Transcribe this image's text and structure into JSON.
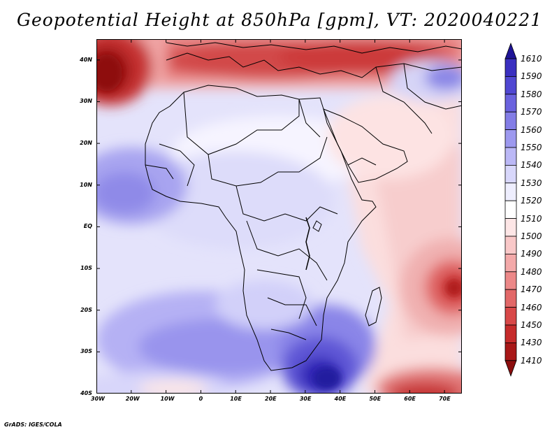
{
  "title": "Geopotential Height at 850hPa [gpm], VT: 2020040221",
  "credit": "GrADS: IGES/COLA",
  "map": {
    "lon_range": [
      -30,
      75
    ],
    "lat_range": [
      -40,
      45
    ],
    "lat_ticks": [
      {
        "label": "40N",
        "value": 40
      },
      {
        "label": "30N",
        "value": 30
      },
      {
        "label": "20N",
        "value": 20
      },
      {
        "label": "10N",
        "value": 10
      },
      {
        "label": "EQ",
        "value": 0
      },
      {
        "label": "10S",
        "value": -10
      },
      {
        "label": "20S",
        "value": -20
      },
      {
        "label": "30S",
        "value": -30
      },
      {
        "label": "40S",
        "value": -40
      }
    ],
    "lon_ticks": [
      {
        "label": "30W",
        "value": -30
      },
      {
        "label": "20W",
        "value": -20
      },
      {
        "label": "10W",
        "value": -10
      },
      {
        "label": "0",
        "value": 0
      },
      {
        "label": "10E",
        "value": 10
      },
      {
        "label": "20E",
        "value": 20
      },
      {
        "label": "30E",
        "value": 30
      },
      {
        "label": "40E",
        "value": 40
      },
      {
        "label": "50E",
        "value": 50
      },
      {
        "label": "60E",
        "value": 60
      },
      {
        "label": "70E",
        "value": 70
      }
    ]
  },
  "colorbar": {
    "labels": [
      "1610",
      "1590",
      "1580",
      "1570",
      "1560",
      "1550",
      "1540",
      "1530",
      "1520",
      "1510",
      "1500",
      "1490",
      "1480",
      "1470",
      "1460",
      "1450",
      "1430",
      "1410"
    ],
    "colors": [
      "#1f1497",
      "#3a2fc0",
      "#5047d2",
      "#6a62de",
      "#837de6",
      "#9d99ef",
      "#bbb8f6",
      "#d8d7fb",
      "#eeeefe",
      "#ffffff",
      "#fde6e6",
      "#f9c8c8",
      "#f3a9a9",
      "#ec8888",
      "#e26868",
      "#d84848",
      "#c62b2b",
      "#a81818",
      "#8c0e0e"
    ]
  }
}
